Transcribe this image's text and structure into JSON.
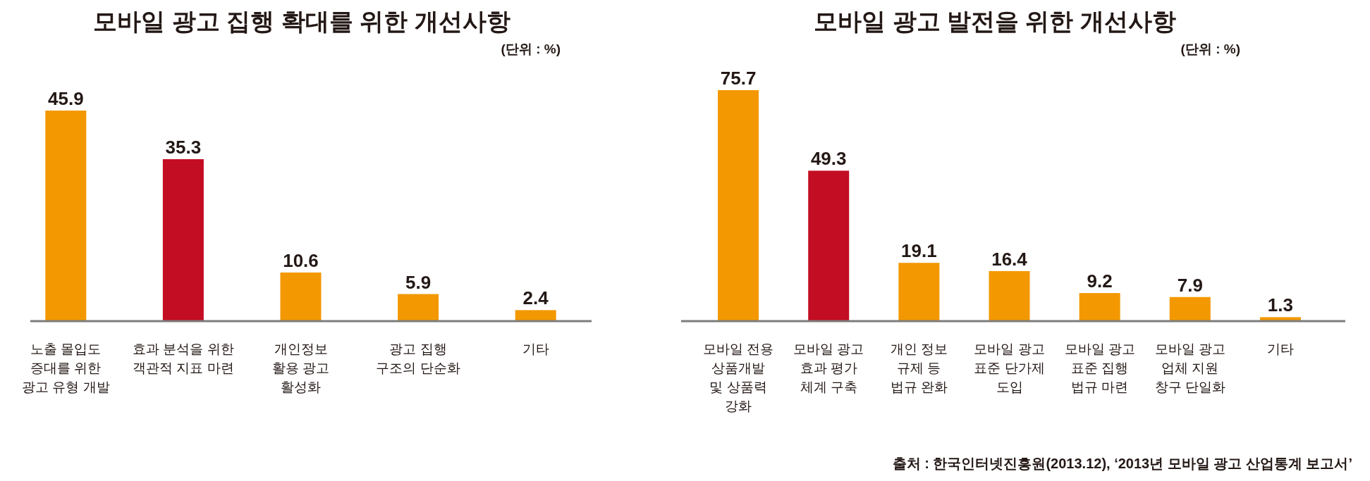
{
  "chart_data": [
    {
      "type": "bar",
      "title": "모바일 광고 집행 확대를 위한 개선사항",
      "annotations": [
        "(단위 : %)"
      ],
      "categories": [
        "노출 몰입도\n증대를 위한\n광고 유형 개발",
        "효과 분석을 위한\n객관적 지표 마련",
        "개인정보\n활용 광고\n활성화",
        "광고 집행\n구조의 단순화",
        "기타"
      ],
      "values": [
        45.9,
        35.3,
        10.6,
        5.9,
        2.4
      ],
      "colors": [
        "#f39800",
        "#c30d23",
        "#f39800",
        "#f39800",
        "#f39800"
      ],
      "data_labels": true
    },
    {
      "type": "bar",
      "title": "모바일 광고 발전을 위한 개선사항",
      "annotations": [
        "(단위 : %)",
        "출처 : 한국인터넷진흥원(2013.12), ‘2013년 모바일 광고 산업통계 보고서’"
      ],
      "categories": [
        "모바일 전용\n상품개발\n및 상품력\n강화",
        "모바일 광고\n효과 평가\n체계 구축",
        "개인 정보\n규제 등\n법규 완화",
        "모바일 광고\n표준 단가제\n도입",
        "모바일 광고\n표준 집행\n법규 마련",
        "모바일 광고\n업체 지원\n창구 단일화",
        "기타"
      ],
      "values": [
        75.7,
        49.3,
        19.1,
        16.4,
        9.2,
        7.9,
        1.3
      ],
      "colors": [
        "#f39800",
        "#c30d23",
        "#f39800",
        "#f39800",
        "#f39800",
        "#f39800",
        "#f39800"
      ],
      "data_labels": true
    }
  ]
}
